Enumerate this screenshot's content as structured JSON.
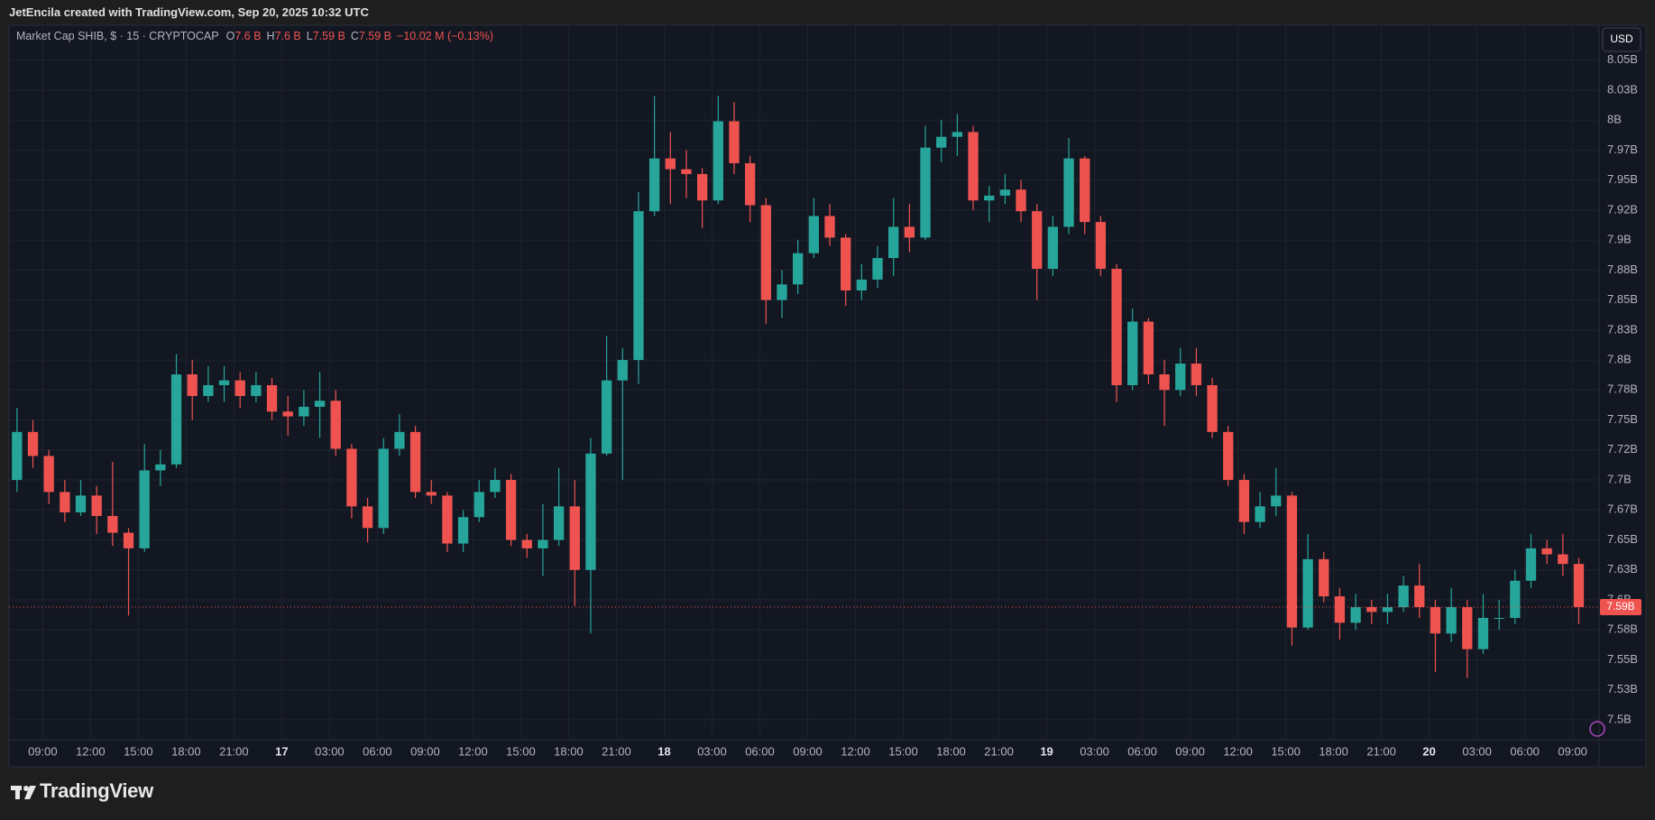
{
  "header": {
    "credit": "JetEncila created with TradingView.com, Sep 20, 2025 10:32 UTC"
  },
  "footer": {
    "brand": "TradingView"
  },
  "chart_data": {
    "type": "candlestick",
    "symbol": "Market Cap SHIB, $ · 15 · CRYPTOCAP",
    "legend": [
      {
        "key": "O",
        "value": "7.6 B"
      },
      {
        "key": "H",
        "value": "7.6 B"
      },
      {
        "key": "L",
        "value": "7.59 B"
      },
      {
        "key": "C",
        "value": "7.59 B"
      }
    ],
    "change": "−10.02 M (−0.13%)",
    "currency": "USD",
    "up_color": "#26a69a",
    "down_color": "#ef5350",
    "grid": true,
    "categories": [
      null,
      null,
      "09:00",
      null,
      null,
      "12:00",
      null,
      null,
      "15:00",
      null,
      null,
      "18:00",
      null,
      null,
      "21:00",
      null,
      null,
      "17",
      null,
      null,
      "03:00",
      null,
      null,
      "06:00",
      null,
      null,
      "09:00",
      null,
      null,
      "12:00",
      null,
      null,
      "15:00",
      null,
      null,
      "18:00",
      null,
      null,
      "21:00",
      null,
      null,
      "18",
      null,
      null,
      "03:00",
      null,
      null,
      "06:00",
      null,
      null,
      "09:00",
      null,
      null,
      "12:00",
      null,
      null,
      "15:00",
      null,
      null,
      "18:00",
      null,
      null,
      "21:00",
      null,
      null,
      "19",
      null,
      null,
      "03:00",
      null,
      null,
      "06:00",
      null,
      null,
      "09:00",
      null,
      null,
      "12:00",
      null,
      null,
      "15:00",
      null,
      null,
      "18:00",
      null,
      null,
      "21:00",
      null,
      null,
      "20",
      null,
      null,
      "03:00",
      null,
      null,
      "06:00",
      null,
      null,
      "09:00"
    ],
    "open": [
      7.7,
      7.74,
      7.72,
      7.69,
      7.673,
      7.687,
      7.67,
      7.656,
      7.643,
      7.708,
      7.713,
      7.788,
      7.77,
      7.779,
      7.783,
      7.77,
      7.779,
      7.757,
      7.753,
      7.761,
      7.766,
      7.726,
      7.678,
      7.66,
      7.726,
      7.74,
      7.69,
      7.687,
      7.647,
      7.669,
      7.69,
      7.7,
      7.65,
      7.643,
      7.65,
      7.678,
      7.625,
      7.722,
      7.783,
      7.8,
      7.924,
      7.968,
      7.959,
      7.955,
      7.933,
      7.999,
      7.964,
      7.929,
      7.85,
      7.863,
      7.889,
      7.92,
      7.902,
      7.858,
      7.867,
      7.885,
      7.911,
      7.902,
      7.977,
      7.986,
      7.99,
      7.933,
      7.937,
      7.942,
      7.924,
      7.876,
      7.911,
      7.968,
      7.915,
      7.876,
      7.779,
      7.832,
      7.788,
      7.775,
      7.797,
      7.779,
      7.74,
      7.7,
      7.665,
      7.678,
      7.687,
      7.577,
      7.634,
      7.603,
      7.581,
      7.594,
      7.59,
      7.594,
      7.612,
      7.594,
      7.572,
      7.594,
      7.559,
      7.585,
      7.585,
      7.616,
      7.643,
      7.638,
      7.63
    ],
    "high": [
      7.76,
      7.75,
      7.725,
      7.7,
      7.7,
      7.695,
      7.715,
      7.66,
      7.73,
      7.725,
      7.805,
      7.8,
      7.795,
      7.795,
      7.79,
      7.79,
      7.785,
      7.77,
      7.775,
      7.79,
      7.775,
      7.73,
      7.685,
      7.735,
      7.755,
      7.745,
      7.7,
      7.69,
      7.675,
      7.7,
      7.71,
      7.705,
      7.655,
      7.68,
      7.71,
      7.7,
      7.735,
      7.82,
      7.81,
      7.94,
      8.02,
      7.99,
      7.975,
      7.96,
      8.02,
      8.015,
      7.97,
      7.935,
      7.875,
      7.9,
      7.935,
      7.93,
      7.905,
      7.88,
      7.895,
      7.935,
      7.93,
      7.995,
      8.0,
      8.005,
      7.995,
      7.945,
      7.955,
      7.95,
      7.93,
      7.92,
      7.985,
      7.97,
      7.92,
      7.88,
      7.843,
      7.835,
      7.8,
      7.81,
      7.81,
      7.785,
      7.745,
      7.705,
      7.69,
      7.71,
      7.69,
      7.655,
      7.64,
      7.61,
      7.605,
      7.6,
      7.605,
      7.62,
      7.63,
      7.6,
      7.61,
      7.6,
      7.605,
      7.6,
      7.625,
      7.655,
      7.65,
      7.655,
      7.635
    ],
    "low": [
      7.69,
      7.71,
      7.68,
      7.665,
      7.67,
      7.655,
      7.645,
      7.587,
      7.64,
      7.695,
      7.71,
      7.75,
      7.765,
      7.765,
      7.76,
      7.765,
      7.75,
      7.737,
      7.745,
      7.735,
      7.72,
      7.668,
      7.648,
      7.655,
      7.72,
      7.685,
      7.68,
      7.64,
      7.64,
      7.665,
      7.685,
      7.645,
      7.635,
      7.62,
      7.645,
      7.595,
      7.572,
      7.72,
      7.7,
      7.78,
      7.92,
      7.93,
      7.935,
      7.91,
      7.93,
      7.955,
      7.915,
      7.83,
      7.835,
      7.855,
      7.885,
      7.895,
      7.845,
      7.85,
      7.86,
      7.87,
      7.89,
      7.9,
      7.965,
      7.97,
      7.925,
      7.915,
      7.93,
      7.915,
      7.85,
      7.87,
      7.905,
      7.905,
      7.87,
      7.765,
      7.775,
      7.78,
      7.745,
      7.77,
      7.77,
      7.735,
      7.695,
      7.655,
      7.66,
      7.67,
      7.562,
      7.575,
      7.598,
      7.567,
      7.575,
      7.58,
      7.58,
      7.59,
      7.585,
      7.54,
      7.565,
      7.535,
      7.555,
      7.575,
      7.58,
      7.61,
      7.63,
      7.62,
      7.58
    ],
    "close": [
      7.74,
      7.72,
      7.69,
      7.673,
      7.687,
      7.67,
      7.656,
      7.643,
      7.708,
      7.713,
      7.788,
      7.77,
      7.779,
      7.783,
      7.77,
      7.779,
      7.757,
      7.753,
      7.761,
      7.766,
      7.726,
      7.678,
      7.66,
      7.726,
      7.74,
      7.69,
      7.687,
      7.647,
      7.669,
      7.69,
      7.7,
      7.65,
      7.643,
      7.65,
      7.678,
      7.625,
      7.722,
      7.783,
      7.8,
      7.924,
      7.968,
      7.959,
      7.955,
      7.933,
      7.999,
      7.964,
      7.929,
      7.85,
      7.863,
      7.889,
      7.92,
      7.902,
      7.858,
      7.867,
      7.885,
      7.911,
      7.902,
      7.977,
      7.986,
      7.99,
      7.933,
      7.937,
      7.942,
      7.924,
      7.876,
      7.911,
      7.968,
      7.915,
      7.876,
      7.779,
      7.832,
      7.788,
      7.775,
      7.797,
      7.779,
      7.74,
      7.7,
      7.665,
      7.678,
      7.687,
      7.577,
      7.634,
      7.603,
      7.581,
      7.594,
      7.59,
      7.594,
      7.612,
      7.594,
      7.572,
      7.594,
      7.559,
      7.585,
      7.585,
      7.616,
      7.643,
      7.638,
      7.63,
      7.594
    ],
    "ylim": [
      7.4835,
      8.079
    ],
    "yticks": [
      {
        "value": 8.05,
        "label": "8.05B"
      },
      {
        "value": 8.025,
        "label": "8.03B"
      },
      {
        "value": 8,
        "label": "8B"
      },
      {
        "value": 7.975,
        "label": "7.97B"
      },
      {
        "value": 7.95,
        "label": "7.95B"
      },
      {
        "value": 7.925,
        "label": "7.92B"
      },
      {
        "value": 7.9,
        "label": "7.9B"
      },
      {
        "value": 7.875,
        "label": "7.88B"
      },
      {
        "value": 7.85,
        "label": "7.85B"
      },
      {
        "value": 7.825,
        "label": "7.83B"
      },
      {
        "value": 7.8,
        "label": "7.8B"
      },
      {
        "value": 7.775,
        "label": "7.78B"
      },
      {
        "value": 7.75,
        "label": "7.75B"
      },
      {
        "value": 7.725,
        "label": "7.72B"
      },
      {
        "value": 7.7,
        "label": "7.7B"
      },
      {
        "value": 7.675,
        "label": "7.67B"
      },
      {
        "value": 7.65,
        "label": "7.65B"
      },
      {
        "value": 7.625,
        "label": "7.63B"
      },
      {
        "value": 7.6,
        "label": "7.6B"
      },
      {
        "value": 7.575,
        "label": "7.58B"
      },
      {
        "value": 7.55,
        "label": "7.55B"
      },
      {
        "value": 7.525,
        "label": "7.53B"
      },
      {
        "value": 7.5,
        "label": "7.5B"
      }
    ],
    "price_line": {
      "value": 7.594,
      "label": "7.59B"
    }
  }
}
